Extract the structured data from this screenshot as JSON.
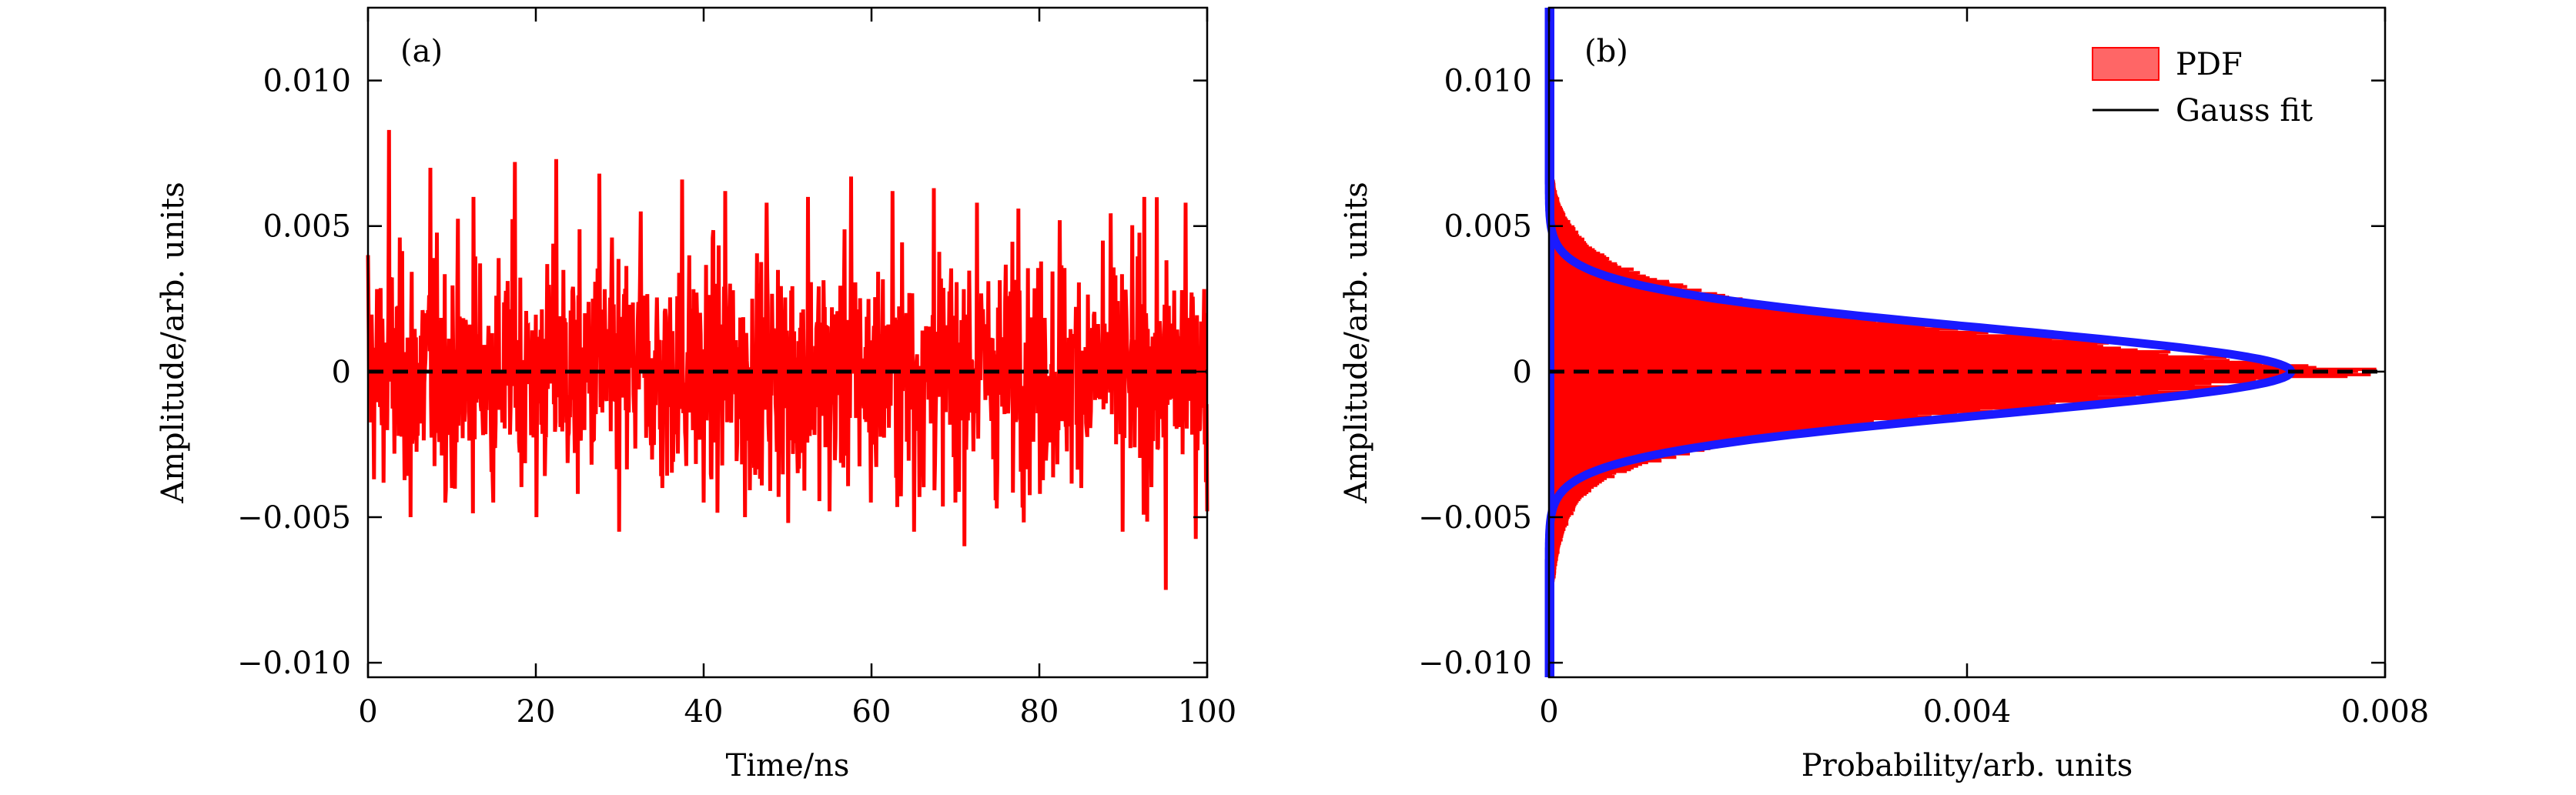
{
  "chart_data": [
    {
      "type": "line",
      "panel_label": "(a)",
      "xlabel": "Time/ns",
      "ylabel": "Amplitude/arb. units",
      "xlim": [
        0,
        100
      ],
      "ylim": [
        -0.0105,
        0.0125
      ],
      "x_ticks": [
        0,
        20,
        40,
        60,
        80,
        100
      ],
      "x_tick_labels": [
        "0",
        "20",
        "40",
        "60",
        "80",
        "100"
      ],
      "y_ticks": [
        -0.01,
        -0.005,
        0,
        0.005,
        0.01
      ],
      "y_tick_labels": [
        "−0.010",
        "−0.005",
        "0",
        "0.005",
        "0.010"
      ],
      "series": [
        {
          "color": "#ff0000",
          "style": "noise trace, approx. std 0.0022, peak ±0.0083",
          "x": [
            0,
            2.5,
            5,
            7.5,
            10,
            12.5,
            15,
            17.5,
            20,
            22.5,
            25,
            27.5,
            30,
            32.5,
            35,
            37.5,
            40,
            42.5,
            45,
            47.5,
            50,
            52.5,
            55,
            57.5,
            60,
            62.5,
            65,
            67.5,
            70,
            72.5,
            75,
            77.5,
            80,
            82.5,
            85,
            87.5,
            90,
            92.5,
            95,
            97.5,
            100
          ],
          "y": [
            0.004,
            0.0083,
            -0.005,
            0.007,
            -0.004,
            0.006,
            -0.0045,
            0.0072,
            -0.005,
            0.0073,
            -0.0042,
            0.0068,
            -0.0055,
            0.0055,
            -0.004,
            0.0066,
            -0.0045,
            0.0062,
            -0.005,
            0.0058,
            -0.0052,
            0.006,
            -0.0048,
            0.0067,
            -0.0045,
            0.0062,
            -0.0055,
            0.0063,
            -0.0045,
            0.0058,
            -0.0047,
            0.0056,
            -0.0042,
            0.0052,
            -0.004,
            0.0045,
            -0.0055,
            0.006,
            -0.0075,
            0.0058,
            -0.0048
          ]
        },
        {
          "color": "#000000",
          "style": "dashed",
          "x": [
            0,
            100
          ],
          "y": [
            0,
            0
          ]
        }
      ]
    },
    {
      "type": "area",
      "panel_label": "(b)",
      "xlabel": "Probability/arb. units",
      "ylabel": "Amplitude/arb. units",
      "xlim": [
        0,
        0.008
      ],
      "ylim": [
        -0.0105,
        0.0125
      ],
      "x_ticks": [
        0,
        0.004,
        0.008
      ],
      "x_tick_labels": [
        "0",
        "0.004",
        "0.008"
      ],
      "y_ticks": [
        -0.01,
        -0.005,
        0,
        0.005,
        0.01
      ],
      "y_tick_labels": [
        "−0.010",
        "−0.005",
        "0",
        "0.005",
        "0.010"
      ],
      "legend": {
        "position": "top-right",
        "entries": [
          {
            "label": "PDF",
            "color": "#ff6666",
            "type": "patch"
          },
          {
            "label": "Gauss fit",
            "color": "#000000",
            "type": "line"
          }
        ]
      },
      "series": [
        {
          "name": "PDF",
          "color": "#ff0000",
          "amplitude": [
            -0.0105,
            -0.008,
            -0.006,
            -0.005,
            -0.004,
            -0.003,
            -0.002,
            -0.001,
            0,
            0.001,
            0.002,
            0.003,
            0.004,
            0.005,
            0.006,
            0.007,
            0.0125
          ],
          "probability": [
            0,
            3e-05,
            0.0001,
            0.0002,
            0.0004,
            0.0011,
            0.0026,
            0.0052,
            0.0078,
            0.0052,
            0.0026,
            0.0012,
            0.0005,
            0.00022,
            8e-05,
            3e-05,
            0
          ]
        },
        {
          "name": "Gauss fit",
          "color": "#1a1aff",
          "mean": 0,
          "std": 0.00145,
          "peak": 0.0071
        },
        {
          "color": "#000000",
          "style": "dashed",
          "x": [
            0,
            0.008
          ],
          "y": [
            0,
            0
          ]
        }
      ]
    }
  ]
}
